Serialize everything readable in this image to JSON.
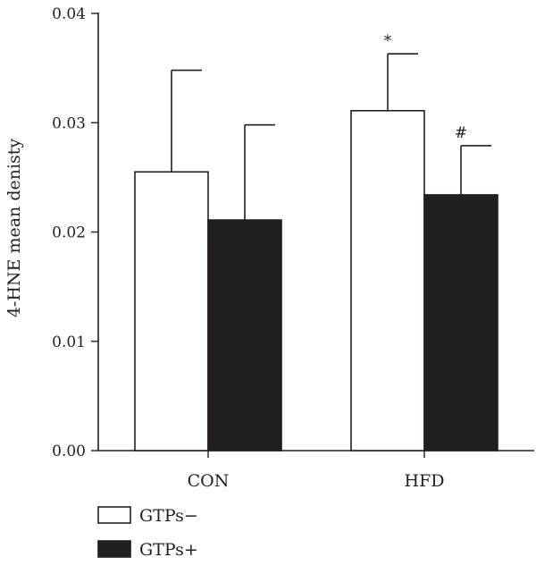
{
  "chart_data": {
    "type": "bar",
    "title": "",
    "xlabel": "",
    "ylabel": "4-HNE mean denisty",
    "ylim": [
      0,
      0.04
    ],
    "yticks": [
      0.0,
      0.01,
      0.02,
      0.03,
      0.04
    ],
    "ytick_labels": [
      "0.00",
      "0.01",
      "0.02",
      "0.03",
      "0.04"
    ],
    "categories": [
      "CON",
      "HFD"
    ],
    "grid": false,
    "legend_position": "bottom-left",
    "series": [
      {
        "name": "GTPs−",
        "color": "#ffffff",
        "values": [
          0.0255,
          0.0311
        ],
        "errors": [
          0.0093,
          0.0052
        ],
        "annotations": [
          "",
          "*"
        ]
      },
      {
        "name": "GTPs+",
        "color": "#231f20",
        "values": [
          0.0211,
          0.0234
        ],
        "errors": [
          0.0087,
          0.0045
        ],
        "annotations": [
          "",
          "#"
        ]
      }
    ]
  }
}
